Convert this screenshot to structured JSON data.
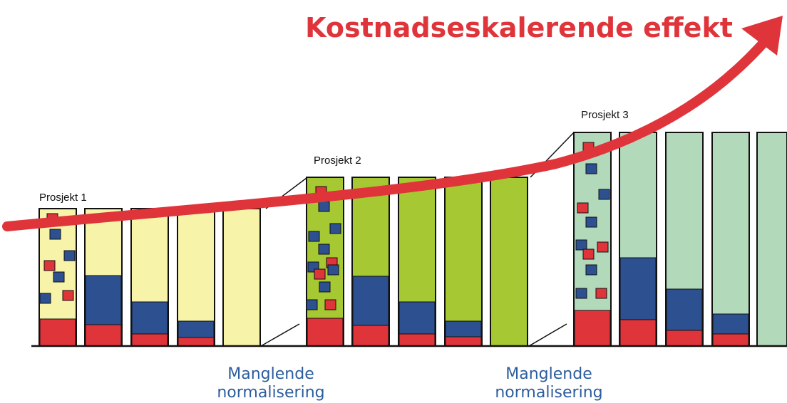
{
  "title": "Kostnadseskalerende effekt",
  "projects": [
    "Prosjekt 1",
    "Prosjekt 2",
    "Prosjekt 3"
  ],
  "notes": [
    [
      "Manglende",
      "normalisering"
    ],
    [
      "Manglende",
      "normalisering"
    ]
  ]
}
